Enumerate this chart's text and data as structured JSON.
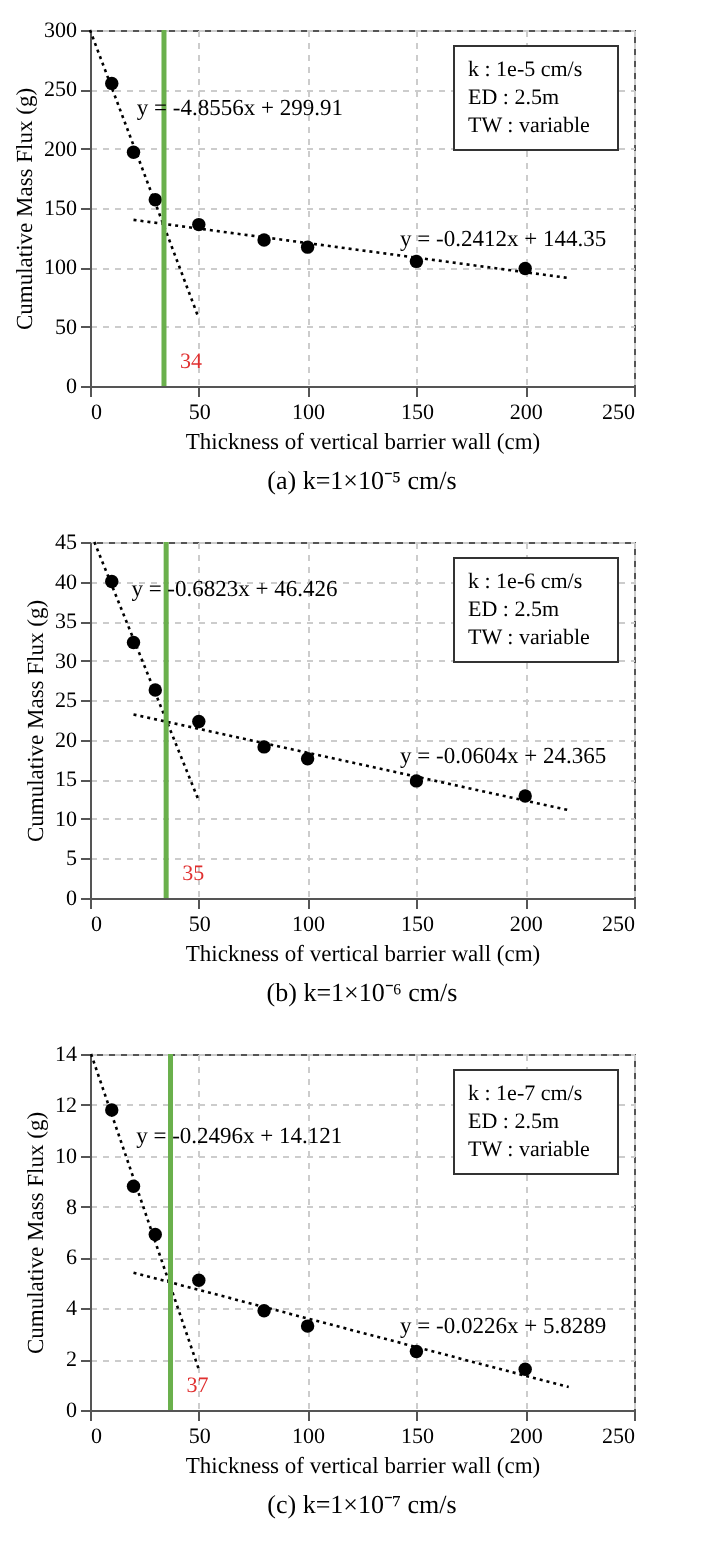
{
  "chart_data": [
    {
      "type": "scatter",
      "title": "(a) k=1×10⁻⁵ cm/s",
      "xlabel": "Thickness of vertical barrier wall (cm)",
      "ylabel": "Cumulative Mass Flux (g)",
      "xlim": [
        0,
        250
      ],
      "xticks": [
        0,
        50,
        100,
        150,
        200,
        250
      ],
      "ylim": [
        0,
        300
      ],
      "yticks": [
        0,
        50,
        100,
        150,
        200,
        250,
        300
      ],
      "grid": true,
      "series": [
        {
          "color": "#000000",
          "marker": "circle",
          "x": [
            10,
            20,
            30,
            50,
            80,
            100,
            150,
            200
          ],
          "values": [
            255,
            197,
            157,
            136,
            123,
            117,
            105,
            99
          ]
        },
        {
          "type": "line",
          "color": "#000000",
          "line_style": "dotted",
          "x": [
            0,
            50
          ],
          "values": [
            300,
            57
          ]
        },
        {
          "type": "line",
          "color": "#000000",
          "line_style": "dotted",
          "x": [
            20,
            220
          ],
          "values": [
            140,
            91
          ]
        }
      ],
      "ref_lines": [
        {
          "axis": "x",
          "value": 34,
          "label": "34",
          "color": "#6ab04c"
        }
      ],
      "annotations": [
        {
          "text": "y = -4.8556x + 299.91",
          "x": 16,
          "y": 222
        },
        {
          "text": "y = -0.2412x + 144.35",
          "x": 137,
          "y": 111
        },
        "k : 1e-5 cm/s",
        "ED : 2.5m",
        "TW : variable"
      ]
    },
    {
      "type": "scatter",
      "title": "(b) k=1×10⁻⁶ cm/s",
      "xlabel": "Thickness of vertical barrier wall (cm)",
      "ylabel": "Cumulative Mass Flux (g)",
      "xlim": [
        0,
        250
      ],
      "xticks": [
        0,
        50,
        100,
        150,
        200,
        250
      ],
      "ylim": [
        0,
        45
      ],
      "yticks": [
        0,
        5,
        10,
        15,
        20,
        25,
        30,
        35,
        40,
        45
      ],
      "grid": true,
      "series": [
        {
          "color": "#000000",
          "marker": "circle",
          "x": [
            10,
            20,
            30,
            50,
            80,
            100,
            150,
            200
          ],
          "values": [
            40,
            32.3,
            26.3,
            22.3,
            19.1,
            17.6,
            14.8,
            12.9
          ]
        },
        {
          "type": "line",
          "color": "#000000",
          "line_style": "dotted",
          "x": [
            2,
            50
          ],
          "values": [
            45,
            12.3
          ]
        },
        {
          "type": "line",
          "color": "#000000",
          "line_style": "dotted",
          "x": [
            20,
            220
          ],
          "values": [
            23.2,
            11.1
          ]
        }
      ],
      "ref_lines": [
        {
          "axis": "x",
          "value": 35,
          "label": "35",
          "color": "#6ab04c"
        }
      ],
      "annotations": [
        {
          "text": "y = -0.6823x + 46.426",
          "x": 13.5,
          "y": 37.2
        },
        {
          "text": "y = -0.0604x + 24.365",
          "x": 137,
          "y": 16.1
        },
        "k : 1e-6 cm/s",
        "ED : 2.5m",
        "TW : variable"
      ]
    },
    {
      "type": "scatter",
      "title": "(c) k=1×10⁻⁷ cm/s",
      "xlabel": "Thickness of vertical barrier wall (cm)",
      "ylabel": "Cumulative Mass Flux (g)",
      "xlim": [
        0,
        250
      ],
      "xticks": [
        0,
        50,
        100,
        150,
        200,
        250
      ],
      "ylim": [
        0,
        14
      ],
      "yticks": [
        0,
        2,
        4,
        6,
        8,
        10,
        12,
        14
      ],
      "grid": true,
      "series": [
        {
          "color": "#000000",
          "marker": "circle",
          "x": [
            10,
            20,
            30,
            50,
            80,
            100,
            150,
            200
          ],
          "values": [
            11.8,
            8.8,
            6.9,
            5.1,
            3.9,
            3.3,
            2.3,
            1.6
          ]
        },
        {
          "type": "line",
          "color": "#000000",
          "line_style": "dotted",
          "x": [
            0.5,
            50
          ],
          "values": [
            14,
            1.6
          ]
        },
        {
          "type": "line",
          "color": "#000000",
          "line_style": "dotted",
          "x": [
            20,
            220
          ],
          "values": [
            5.4,
            0.9
          ]
        }
      ],
      "ref_lines": [
        {
          "axis": "x",
          "value": 37,
          "label": "37",
          "color": "#6ab04c"
        }
      ],
      "annotations": [
        {
          "text": "y = -0.2496x + 14.121",
          "x": 15.7,
          "y": 10.2
        },
        {
          "text": "y = -0.0226x + 5.8289",
          "x": 137,
          "y": 2.7
        },
        "k : 1e-7 cm/s",
        "ED : 2.5m",
        "TW : variable"
      ]
    }
  ]
}
